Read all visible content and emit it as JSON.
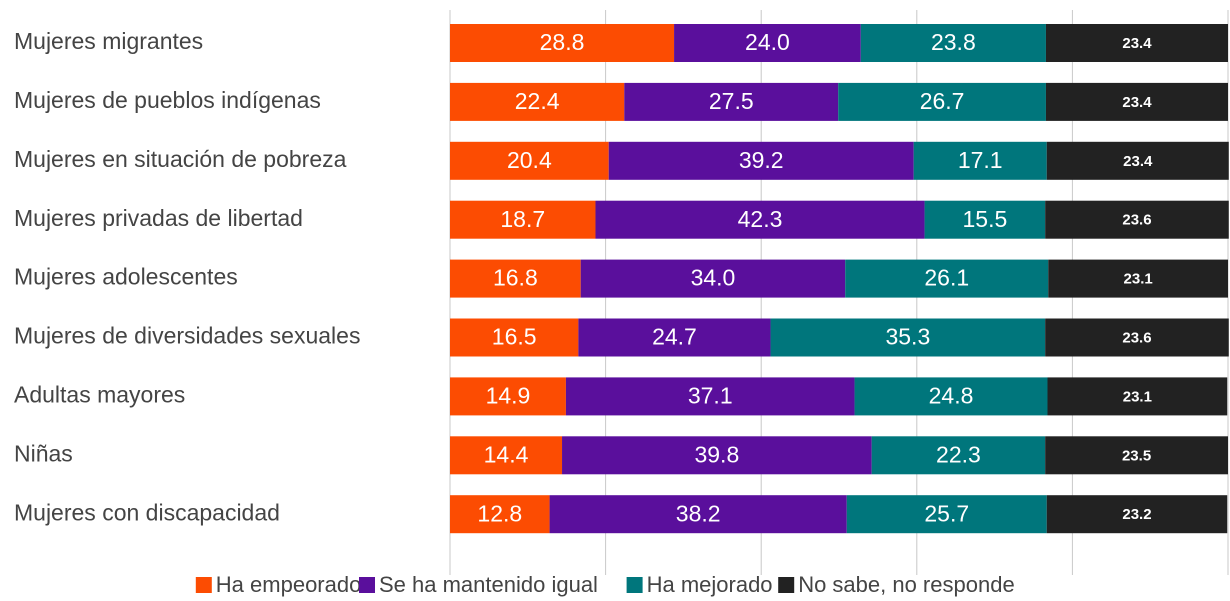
{
  "chart_data": {
    "type": "stacked_bar_horizontal",
    "categories": [
      "Mujeres migrantes",
      "Mujeres de pueblos indígenas",
      "Mujeres en situación de pobreza",
      "Mujeres privadas de libertad",
      "Mujeres adolescentes",
      "Mujeres de diversidades sexuales",
      "Adultas mayores",
      "Niñas",
      "Mujeres con discapacidad"
    ],
    "series": [
      {
        "name": "Ha empeorado",
        "color": "#fc4c02",
        "values": [
          28.8,
          22.4,
          20.4,
          18.7,
          16.8,
          16.5,
          14.9,
          14.4,
          12.8
        ]
      },
      {
        "name": "Se ha mantenido igual",
        "color": "#5a0f9c",
        "values": [
          24.0,
          27.5,
          39.2,
          42.3,
          34.0,
          24.7,
          37.1,
          39.8,
          38.2
        ],
        "value_labels": [
          "24.0",
          "27.5",
          "39.2",
          "42.3",
          "34.0",
          "24.7",
          "37.1",
          "39.8",
          "38.2"
        ]
      },
      {
        "name": "Ha mejorado",
        "color": "#00767c",
        "values": [
          23.8,
          26.7,
          17.1,
          15.5,
          26.1,
          35.3,
          24.8,
          22.3,
          25.7
        ]
      },
      {
        "name": "No sabe, no responde",
        "color": "#222222",
        "values": [
          23.4,
          23.4,
          23.4,
          23.6,
          23.1,
          23.6,
          23.1,
          23.5,
          23.2
        ]
      }
    ],
    "xlim": [
      0,
      100
    ],
    "xticks": [
      0,
      20,
      40,
      60,
      80,
      100
    ],
    "grid": true,
    "legend": "bottom"
  }
}
